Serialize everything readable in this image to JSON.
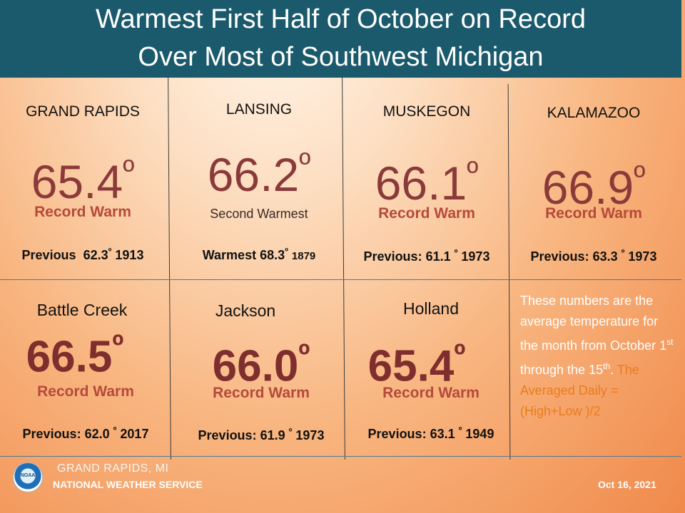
{
  "header": {
    "title_line1": "Warmest First Half of October on Record",
    "title_line2": "Over Most of Southwest Michigan"
  },
  "stations": [
    {
      "city": "GRAND RAPIDS",
      "temp": "65.4",
      "status": "Record Warm",
      "prev_label": "Previous",
      "prev_temp": "62.3",
      "prev_year": "1913"
    },
    {
      "city": "LANSING",
      "temp": "66.2",
      "status": "Second Warmest",
      "prev_label": "Warmest",
      "prev_temp": "68.3",
      "prev_year": "1879"
    },
    {
      "city": "MUSKEGON",
      "temp": "66.1",
      "status": "Record Warm",
      "prev_label": "Previous:",
      "prev_temp": "61.1",
      "prev_year": "1973"
    },
    {
      "city": "KALAMAZOO",
      "temp": "66.9",
      "status": "Record Warm",
      "prev_label": "Previous:",
      "prev_temp": "63.3",
      "prev_year": "1973"
    },
    {
      "city": "Battle Creek",
      "temp": "66.5",
      "status": "Record Warm",
      "prev_label": "Previous:",
      "prev_temp": "62.0",
      "prev_year": "2017"
    },
    {
      "city": "Jackson",
      "temp": "66.0",
      "status": "Record Warm",
      "prev_label": "Previous:",
      "prev_temp": "61.9",
      "prev_year": "1973"
    },
    {
      "city": "Holland",
      "temp": "65.4",
      "status": "Record Warm",
      "prev_label": "Previous:",
      "prev_temp": "63.1",
      "prev_year": "1949"
    }
  ],
  "degree_symbol": "º",
  "note": {
    "text_before": "These numbers are the average temperature for the month from October 1",
    "superscript": "st",
    "text_middle": " through the 15",
    "superscript2": "th",
    "text_after": ".",
    "formula": "The Averaged Daily = (High+Low )/2"
  },
  "footer": {
    "office": "GRAND RAPIDS, MI",
    "agency": "NATIONAL WEATHER SERVICE",
    "logo_text": "NOAA",
    "date": "Oct 16, 2021"
  },
  "colors": {
    "header_bg": "#1b5a6c",
    "temp": "#8b3a3a",
    "status": "#b54a3a",
    "formula": "#e87c1e"
  }
}
